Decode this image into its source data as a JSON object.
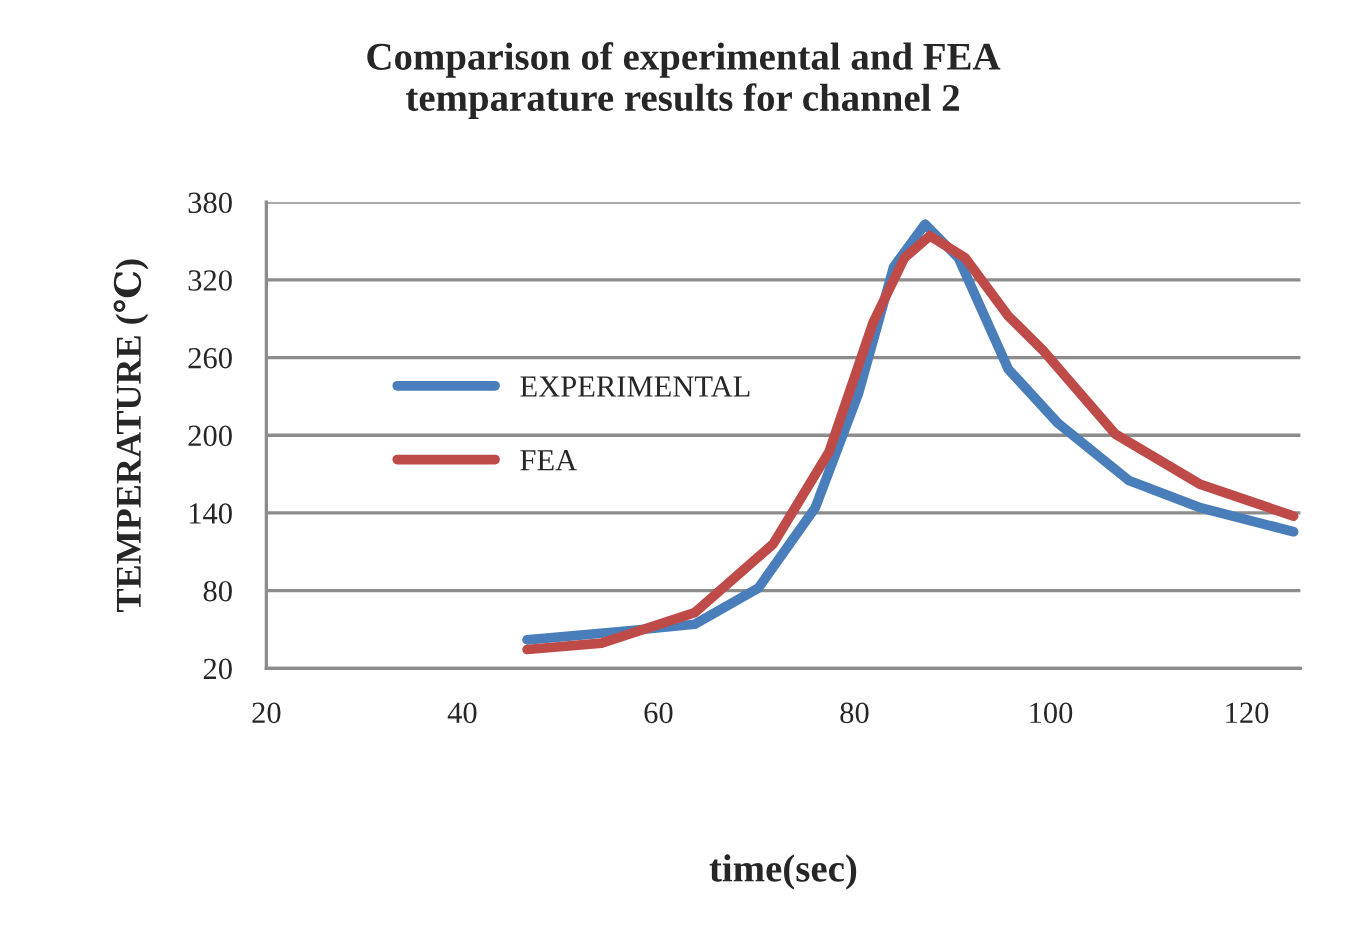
{
  "chart_data": {
    "type": "line",
    "title": "Comparison of experimental and FEA\ntemparature results for channel 2",
    "xlabel": "time(sec)",
    "ylabel": "TEMPERATURE (℃)",
    "xlim": [
      20,
      125.5
    ],
    "xticks": [
      20,
      40,
      60,
      80,
      100,
      120
    ],
    "ylim": [
      20,
      380
    ],
    "yticks": [
      20,
      80,
      140,
      200,
      260,
      320,
      380
    ],
    "grid": "y",
    "legend": "left",
    "line_style": "solid",
    "marker": "none",
    "series": [
      {
        "name": "EXPERIMENTAL",
        "color": "#4a7ebb",
        "x": [
          46.6,
          57,
          63.7,
          70.2,
          76,
          80.4,
          84,
          87.2,
          90.6,
          95.7,
          100.8,
          108,
          115.3,
          124.8
        ],
        "values": [
          42,
          49,
          54,
          82,
          144,
          232,
          330,
          363,
          337,
          251,
          209,
          165,
          144,
          125.5
        ]
      },
      {
        "name": "FEA",
        "color": "#be4b48",
        "x": [
          46.6,
          54.2,
          63.7,
          71.7,
          77.4,
          81.9,
          85.1,
          87.7,
          91.3,
          95.7,
          99.3,
          106.6,
          115.3,
          124.8
        ],
        "values": [
          34.5,
          39.5,
          63,
          116,
          187,
          287,
          337,
          354,
          337,
          292,
          265,
          201,
          162,
          137.6
        ]
      }
    ]
  }
}
